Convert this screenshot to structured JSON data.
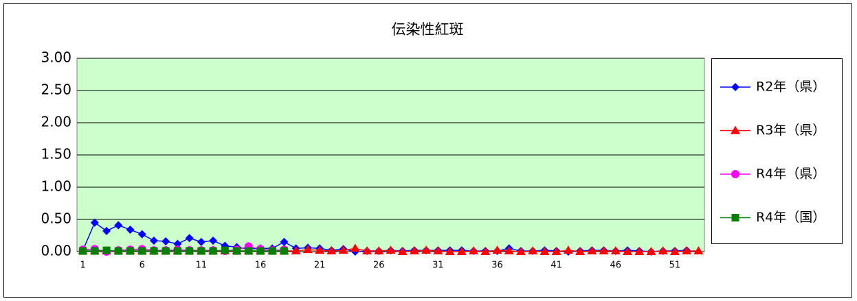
{
  "chart_data": {
    "type": "line",
    "title": "伝染性紅斑",
    "categories": [
      "1",
      null,
      null,
      null,
      null,
      "6",
      null,
      null,
      null,
      null,
      "11",
      null,
      null,
      null,
      null,
      "16",
      null,
      null,
      null,
      null,
      "21",
      null,
      null,
      null,
      null,
      "26",
      null,
      null,
      null,
      null,
      "31",
      null,
      null,
      null,
      null,
      "36",
      null,
      null,
      null,
      null,
      "41",
      null,
      null,
      null,
      null,
      "46",
      null,
      null,
      null,
      null,
      "51",
      null,
      null
    ],
    "ylim": [
      0,
      3
    ],
    "yticks": [
      {
        "value": 0,
        "label": "0.00"
      },
      {
        "value": 0.5,
        "label": "0.50"
      },
      {
        "value": 1,
        "label": "1.00"
      },
      {
        "value": 1.5,
        "label": "1.50"
      },
      {
        "value": 2,
        "label": "2.00"
      },
      {
        "value": 2.5,
        "label": "2.50"
      },
      {
        "value": 3,
        "label": "3.00"
      }
    ],
    "grid": true,
    "plot_background": "#ccffcc",
    "legend": "right",
    "series": [
      {
        "name": "R2年（県）",
        "color": "#0000ff",
        "marker": "diamond",
        "values": [
          0.02,
          0.45,
          0.32,
          0.41,
          0.34,
          0.27,
          0.17,
          0.16,
          0.12,
          0.21,
          0.15,
          0.17,
          0.09,
          0.07,
          0.04,
          0.05,
          0.05,
          0.15,
          0.05,
          0.06,
          0.05,
          0.02,
          0.04,
          0.0,
          0.01,
          0.01,
          0.02,
          0.01,
          0.02,
          0.02,
          0.02,
          0.02,
          0.02,
          0.01,
          0.01,
          0.01,
          0.05,
          0.01,
          0.01,
          0.02,
          0.01,
          0.0,
          0.01,
          0.02,
          0.02,
          0.01,
          0.02,
          0.01,
          0.0,
          0.01,
          0.01,
          0.02,
          null
        ]
      },
      {
        "name": "R3年（県）",
        "color": "#ff0000",
        "marker": "triangle",
        "values": [
          0.01,
          0.01,
          0.01,
          0.01,
          0.01,
          0.01,
          0.01,
          0.01,
          0.01,
          0.01,
          0.01,
          0.01,
          0.01,
          0.01,
          0.01,
          0.01,
          0.01,
          0.01,
          0.01,
          0.03,
          0.02,
          0.01,
          0.02,
          0.05,
          0.01,
          0.01,
          0.02,
          0.0,
          0.01,
          0.02,
          0.01,
          0.0,
          0.0,
          0.01,
          0.0,
          0.02,
          0.01,
          0.0,
          0.01,
          0.0,
          0.0,
          0.02,
          0.0,
          0.01,
          0.01,
          0.01,
          0.0,
          0.0,
          0.0,
          0.01,
          0.0,
          0.01,
          0.01
        ]
      },
      {
        "name": "R4年（県）",
        "color": "#ff00ff",
        "marker": "circle",
        "values": [
          0.03,
          0.04,
          0.0,
          0.02,
          0.03,
          0.04,
          0.02,
          0.02,
          0.03,
          0.02,
          0.02,
          0.02,
          0.01,
          0.03,
          0.08,
          0.04,
          0.02,
          0.03,
          null,
          null,
          null,
          null,
          null,
          null,
          null,
          null,
          null,
          null,
          null,
          null,
          null,
          null,
          null,
          null,
          null,
          null,
          null,
          null,
          null,
          null,
          null,
          null,
          null,
          null,
          null,
          null,
          null,
          null,
          null,
          null,
          null,
          null,
          null
        ]
      },
      {
        "name": "R4年（国）",
        "color": "#008000",
        "marker": "square",
        "values": [
          0.01,
          0.01,
          0.02,
          0.01,
          0.01,
          0.01,
          0.01,
          0.01,
          0.01,
          0.01,
          0.01,
          0.01,
          0.02,
          0.01,
          0.01,
          0.01,
          0.01,
          0.01,
          null,
          null,
          null,
          null,
          null,
          null,
          null,
          null,
          null,
          null,
          null,
          null,
          null,
          null,
          null,
          null,
          null,
          null,
          null,
          null,
          null,
          null,
          null,
          null,
          null,
          null,
          null,
          null,
          null,
          null,
          null,
          null,
          null,
          null,
          null
        ]
      }
    ]
  }
}
